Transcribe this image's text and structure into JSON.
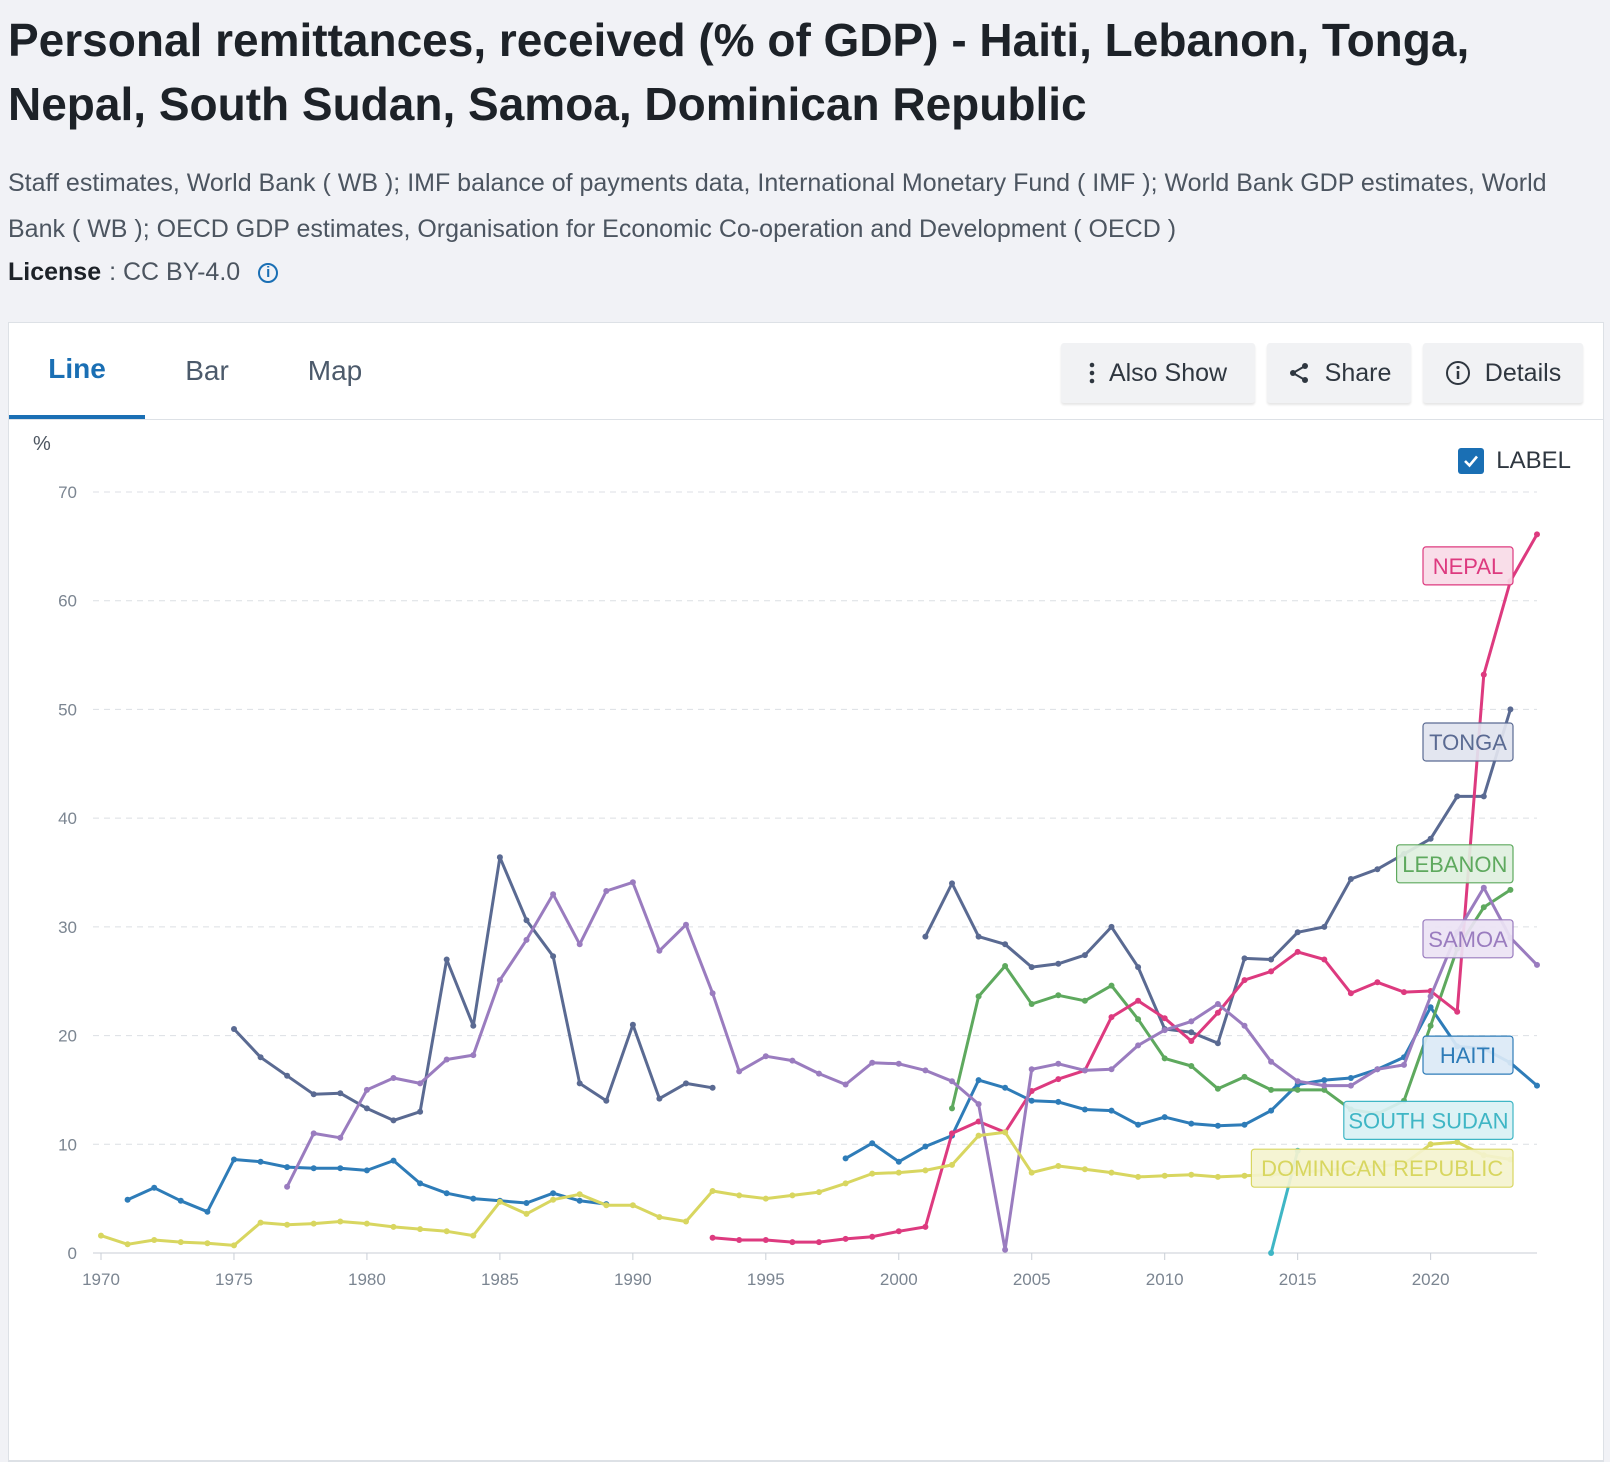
{
  "page": {
    "title": "Personal remittances, received (% of GDP) - Haiti, Lebanon, Tonga, Nepal, South Sudan, Samoa, Dominican Republic",
    "source": "Staff estimates, World Bank ( WB ); IMF balance of payments data, International Monetary Fund ( IMF ); World Bank GDP estimates, World Bank ( WB ); OECD GDP estimates, Organisation for Economic Co-operation and Development ( OECD )",
    "license_label": "License",
    "license_value": ": CC BY-4.0",
    "info_icon": "info-circle-icon"
  },
  "tabs": [
    {
      "label": "Line",
      "active": true
    },
    {
      "label": "Bar",
      "active": false
    },
    {
      "label": "Map",
      "active": false
    }
  ],
  "toolbar": {
    "also_show": "Also Show",
    "share": "Share",
    "details": "Details"
  },
  "label_toggle": {
    "label": "LABEL",
    "checked": true
  },
  "chart_data": {
    "type": "line",
    "unit": "%",
    "xlim": [
      1970,
      2024
    ],
    "ylim": [
      0,
      70
    ],
    "xticks": [
      1970,
      1975,
      1980,
      1985,
      1990,
      1995,
      2000,
      2005,
      2010,
      2015,
      2020
    ],
    "yticks": [
      0,
      10,
      20,
      30,
      40,
      50,
      60,
      70
    ],
    "grid": true,
    "series": [
      {
        "name": "HAITI",
        "color": "#2e7cb8",
        "label_fill": "#dbe9f6",
        "label_y": 18.2,
        "x": [
          1971,
          1972,
          1973,
          1974,
          1975,
          1976,
          1977,
          1978,
          1979,
          1980,
          1981,
          1982,
          1983,
          1984,
          1985,
          1986,
          1987,
          1988,
          1989,
          null,
          1998,
          1999,
          2000,
          2001,
          2002,
          2003,
          2004,
          2005,
          2006,
          2007,
          2008,
          2009,
          2010,
          2011,
          2012,
          2013,
          2014,
          2015,
          2016,
          2017,
          2018,
          2019,
          2020,
          2021,
          2022,
          2023,
          2024
        ],
        "y": [
          4.9,
          6.0,
          4.8,
          3.8,
          8.6,
          8.4,
          7.9,
          7.8,
          7.8,
          7.6,
          8.5,
          6.4,
          5.5,
          5.0,
          4.8,
          4.6,
          5.5,
          4.8,
          4.5,
          null,
          8.7,
          10.1,
          8.4,
          9.8,
          10.8,
          15.9,
          15.2,
          14.0,
          13.9,
          13.2,
          13.1,
          11.8,
          12.5,
          11.9,
          11.7,
          11.8,
          13.1,
          15.5,
          15.9,
          16.1,
          16.9,
          18.0,
          22.6,
          19.0,
          18.8,
          17.5,
          15.4
        ]
      },
      {
        "name": "LEBANON",
        "color": "#5ea95e",
        "label_fill": "#dff0df",
        "label_y": 35.8,
        "x": [
          2002,
          2003,
          2004,
          2005,
          2006,
          2007,
          2008,
          2009,
          2010,
          2011,
          2012,
          2013,
          2014,
          2015,
          2016,
          2017,
          2018,
          2019,
          2020,
          2021,
          2022,
          2023
        ],
        "y": [
          13.3,
          23.6,
          26.4,
          22.9,
          23.7,
          23.2,
          24.6,
          21.5,
          17.9,
          17.2,
          15.1,
          16.2,
          15.0,
          15.0,
          15.0,
          13.2,
          12.8,
          14.0,
          20.9,
          28.0,
          31.8,
          33.4
        ]
      },
      {
        "name": "TONGA",
        "color": "#5a6a92",
        "label_fill": "#e1e4ef",
        "label_y": 47.0,
        "x": [
          1975,
          1976,
          1977,
          1978,
          1979,
          1980,
          1981,
          1982,
          1983,
          1984,
          1985,
          1986,
          1987,
          1988,
          1989,
          1990,
          1991,
          1992,
          1993,
          null,
          2001,
          2002,
          2003,
          2004,
          2005,
          2006,
          2007,
          2008,
          2009,
          2010,
          2011,
          2012,
          2013,
          2014,
          2015,
          2016,
          2017,
          2018,
          2019,
          2020,
          2021,
          2022,
          2023
        ],
        "y": [
          20.6,
          18.0,
          16.3,
          14.6,
          14.7,
          13.3,
          12.2,
          13.0,
          27.0,
          20.9,
          36.4,
          30.6,
          27.3,
          15.6,
          14.0,
          21.0,
          14.2,
          15.6,
          15.2,
          null,
          29.1,
          34.0,
          29.1,
          28.4,
          26.3,
          26.6,
          27.4,
          30.0,
          26.3,
          20.6,
          20.3,
          19.3,
          27.1,
          27.0,
          29.5,
          30.0,
          34.4,
          35.3,
          36.7,
          38.1,
          42.0,
          42.0,
          50.0
        ]
      },
      {
        "name": "NEPAL",
        "color": "#dd3a7f",
        "label_fill": "#f9dbe7",
        "label_y": 63.2,
        "x": [
          1993,
          1994,
          1995,
          1996,
          1997,
          1998,
          1999,
          2000,
          2001,
          2002,
          2003,
          2004,
          2005,
          2006,
          2007,
          2008,
          2009,
          2010,
          2011,
          2012,
          2013,
          2014,
          2015,
          2016,
          2017,
          2018,
          2019,
          2020,
          2021,
          2022,
          2023,
          2024
        ],
        "y": [
          1.4,
          1.2,
          1.2,
          1.0,
          1.0,
          1.3,
          1.5,
          2.0,
          2.4,
          11.0,
          12.1,
          11.1,
          14.9,
          16.0,
          16.8,
          21.7,
          23.2,
          21.6,
          19.5,
          22.1,
          25.1,
          25.9,
          27.7,
          27.0,
          23.9,
          24.9,
          24.0,
          24.1,
          22.2,
          53.2,
          61.8,
          66.1
        ]
      },
      {
        "name": "SOUTH SUDAN",
        "color": "#3fb6c5",
        "label_fill": "#d9f1f4",
        "label_y": 12.2,
        "x": [
          2014,
          2015
        ],
        "y": [
          0.0,
          9.4
        ]
      },
      {
        "name": "SAMOA",
        "color": "#9a7cbf",
        "label_fill": "#ebe3f4",
        "label_y": 28.9,
        "x": [
          1977,
          1978,
          1979,
          1980,
          1981,
          1982,
          1983,
          1984,
          1985,
          1986,
          1987,
          1988,
          1989,
          1990,
          1991,
          1992,
          1993,
          1994,
          1995,
          1996,
          1997,
          1998,
          1999,
          2000,
          2001,
          2002,
          2003,
          2004,
          2005,
          2006,
          2007,
          2008,
          2009,
          2010,
          2011,
          2012,
          2013,
          2014,
          2015,
          2016,
          2017,
          2018,
          2019,
          2020,
          2021,
          2022,
          2023,
          2024
        ],
        "y": [
          6.1,
          11.0,
          10.6,
          15.0,
          16.1,
          15.6,
          17.8,
          18.2,
          25.1,
          28.8,
          33.0,
          28.4,
          33.3,
          34.1,
          27.8,
          30.2,
          23.9,
          16.7,
          18.1,
          17.7,
          16.5,
          15.5,
          17.5,
          17.4,
          16.8,
          15.8,
          13.7,
          0.3,
          16.9,
          17.4,
          16.8,
          16.9,
          19.1,
          20.5,
          21.3,
          22.9,
          20.9,
          17.6,
          15.8,
          15.4,
          15.4,
          16.9,
          17.3,
          23.6,
          29.5,
          33.6,
          29.0,
          26.5
        ]
      },
      {
        "name": "DOMINICAN REPUBLIC",
        "color": "#d8d660",
        "label_fill": "#f4f3cf",
        "label_y": 7.8,
        "x": [
          1970,
          1971,
          1972,
          1973,
          1974,
          1975,
          1976,
          1977,
          1978,
          1979,
          1980,
          1981,
          1982,
          1983,
          1984,
          1985,
          1986,
          1987,
          1988,
          1989,
          1990,
          1991,
          1992,
          1993,
          1994,
          1995,
          1996,
          1997,
          1998,
          1999,
          2000,
          2001,
          2002,
          2003,
          2004,
          2005,
          2006,
          2007,
          2008,
          2009,
          2010,
          2011,
          2012,
          2013,
          2014,
          2015,
          2016,
          2017,
          2018,
          2019,
          2020,
          2021,
          2022,
          2023
        ],
        "y": [
          1.6,
          0.8,
          1.2,
          1.0,
          0.9,
          0.7,
          2.8,
          2.6,
          2.7,
          2.9,
          2.7,
          2.4,
          2.2,
          2.0,
          1.6,
          4.7,
          3.6,
          4.9,
          5.4,
          4.4,
          4.4,
          3.3,
          2.9,
          5.7,
          5.3,
          5.0,
          5.3,
          5.6,
          6.4,
          7.3,
          7.4,
          7.6,
          8.1,
          10.8,
          11.1,
          7.4,
          8.0,
          7.7,
          7.4,
          7.0,
          7.1,
          7.2,
          7.0,
          7.1,
          7.2,
          7.4,
          7.6,
          7.8,
          8.0,
          8.2,
          10.0,
          10.2,
          9.0,
          8.6
        ]
      }
    ]
  }
}
